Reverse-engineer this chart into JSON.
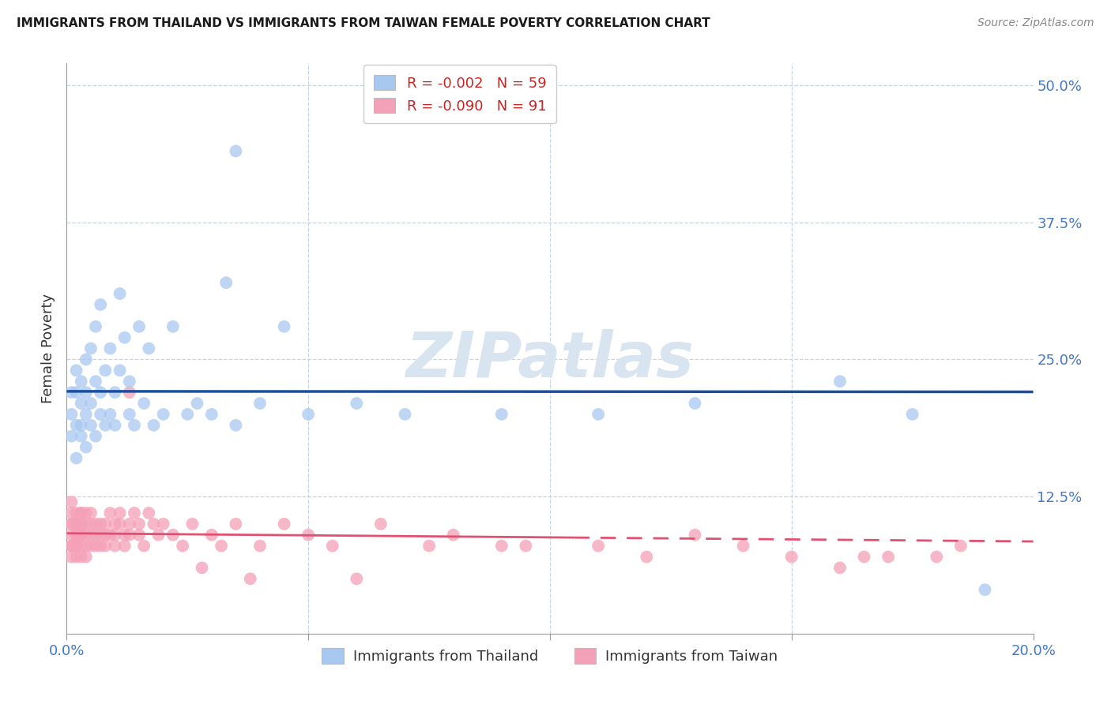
{
  "title": "IMMIGRANTS FROM THAILAND VS IMMIGRANTS FROM TAIWAN FEMALE POVERTY CORRELATION CHART",
  "source": "Source: ZipAtlas.com",
  "ylabel": "Female Poverty",
  "xlim": [
    0.0,
    0.2
  ],
  "ylim": [
    0.0,
    0.52
  ],
  "yticks": [
    0.0,
    0.125,
    0.25,
    0.375,
    0.5
  ],
  "ytick_labels": [
    "",
    "12.5%",
    "25.0%",
    "37.5%",
    "50.0%"
  ],
  "xticks": [
    0.0,
    0.05,
    0.1,
    0.15,
    0.2
  ],
  "xtick_labels": [
    "0.0%",
    "",
    "",
    "",
    "20.0%"
  ],
  "thailand_color": "#a8c8f0",
  "taiwan_color": "#f4a0b8",
  "thailand_R": -0.002,
  "taiwan_R": -0.09,
  "thailand_N": 59,
  "taiwan_N": 91,
  "thailand_line_color": "#1a4fa0",
  "taiwan_line_color": "#e05070",
  "watermark_color": "#d8e4f0",
  "legend_label1": "Immigrants from Thailand",
  "legend_label2": "Immigrants from Taiwan",
  "thailand_line_y": 0.2,
  "taiwan_line_intercept": 0.118,
  "taiwan_line_slope": -0.28,
  "thailand_x": [
    0.001,
    0.001,
    0.001,
    0.002,
    0.002,
    0.002,
    0.002,
    0.003,
    0.003,
    0.003,
    0.003,
    0.004,
    0.004,
    0.004,
    0.004,
    0.005,
    0.005,
    0.005,
    0.006,
    0.006,
    0.006,
    0.007,
    0.007,
    0.007,
    0.008,
    0.008,
    0.009,
    0.009,
    0.01,
    0.01,
    0.011,
    0.011,
    0.012,
    0.013,
    0.013,
    0.014,
    0.015,
    0.016,
    0.017,
    0.018,
    0.02,
    0.022,
    0.025,
    0.027,
    0.03,
    0.033,
    0.035,
    0.04,
    0.045,
    0.05,
    0.06,
    0.07,
    0.09,
    0.11,
    0.13,
    0.16,
    0.175,
    0.19,
    0.035
  ],
  "thailand_y": [
    0.2,
    0.18,
    0.22,
    0.16,
    0.19,
    0.22,
    0.24,
    0.19,
    0.21,
    0.18,
    0.23,
    0.17,
    0.2,
    0.22,
    0.25,
    0.19,
    0.26,
    0.21,
    0.28,
    0.23,
    0.18,
    0.2,
    0.3,
    0.22,
    0.19,
    0.24,
    0.2,
    0.26,
    0.22,
    0.19,
    0.31,
    0.24,
    0.27,
    0.2,
    0.23,
    0.19,
    0.28,
    0.21,
    0.26,
    0.19,
    0.2,
    0.28,
    0.2,
    0.21,
    0.2,
    0.32,
    0.19,
    0.21,
    0.28,
    0.2,
    0.21,
    0.2,
    0.2,
    0.2,
    0.21,
    0.23,
    0.2,
    0.04,
    0.44
  ],
  "taiwan_x": [
    0.001,
    0.001,
    0.001,
    0.001,
    0.001,
    0.001,
    0.001,
    0.001,
    0.002,
    0.002,
    0.002,
    0.002,
    0.002,
    0.002,
    0.002,
    0.002,
    0.002,
    0.003,
    0.003,
    0.003,
    0.003,
    0.003,
    0.003,
    0.003,
    0.003,
    0.004,
    0.004,
    0.004,
    0.004,
    0.004,
    0.005,
    0.005,
    0.005,
    0.005,
    0.006,
    0.006,
    0.006,
    0.007,
    0.007,
    0.007,
    0.008,
    0.008,
    0.008,
    0.009,
    0.009,
    0.01,
    0.01,
    0.01,
    0.011,
    0.011,
    0.012,
    0.012,
    0.013,
    0.013,
    0.014,
    0.015,
    0.015,
    0.016,
    0.017,
    0.018,
    0.019,
    0.02,
    0.022,
    0.024,
    0.026,
    0.028,
    0.03,
    0.032,
    0.035,
    0.038,
    0.04,
    0.045,
    0.05,
    0.055,
    0.06,
    0.065,
    0.075,
    0.08,
    0.09,
    0.095,
    0.11,
    0.12,
    0.13,
    0.14,
    0.15,
    0.16,
    0.165,
    0.17,
    0.18,
    0.185,
    0.013
  ],
  "taiwan_y": [
    0.1,
    0.08,
    0.09,
    0.11,
    0.07,
    0.1,
    0.12,
    0.08,
    0.09,
    0.1,
    0.11,
    0.08,
    0.07,
    0.1,
    0.09,
    0.1,
    0.08,
    0.1,
    0.09,
    0.11,
    0.08,
    0.07,
    0.1,
    0.09,
    0.11,
    0.08,
    0.1,
    0.09,
    0.07,
    0.11,
    0.1,
    0.09,
    0.08,
    0.11,
    0.1,
    0.08,
    0.09,
    0.1,
    0.08,
    0.09,
    0.1,
    0.09,
    0.08,
    0.11,
    0.09,
    0.1,
    0.08,
    0.09,
    0.11,
    0.1,
    0.09,
    0.08,
    0.1,
    0.09,
    0.11,
    0.1,
    0.09,
    0.08,
    0.11,
    0.1,
    0.09,
    0.1,
    0.09,
    0.08,
    0.1,
    0.06,
    0.09,
    0.08,
    0.1,
    0.05,
    0.08,
    0.1,
    0.09,
    0.08,
    0.05,
    0.1,
    0.08,
    0.09,
    0.08,
    0.08,
    0.08,
    0.07,
    0.09,
    0.08,
    0.07,
    0.06,
    0.07,
    0.07,
    0.07,
    0.08,
    0.22
  ]
}
